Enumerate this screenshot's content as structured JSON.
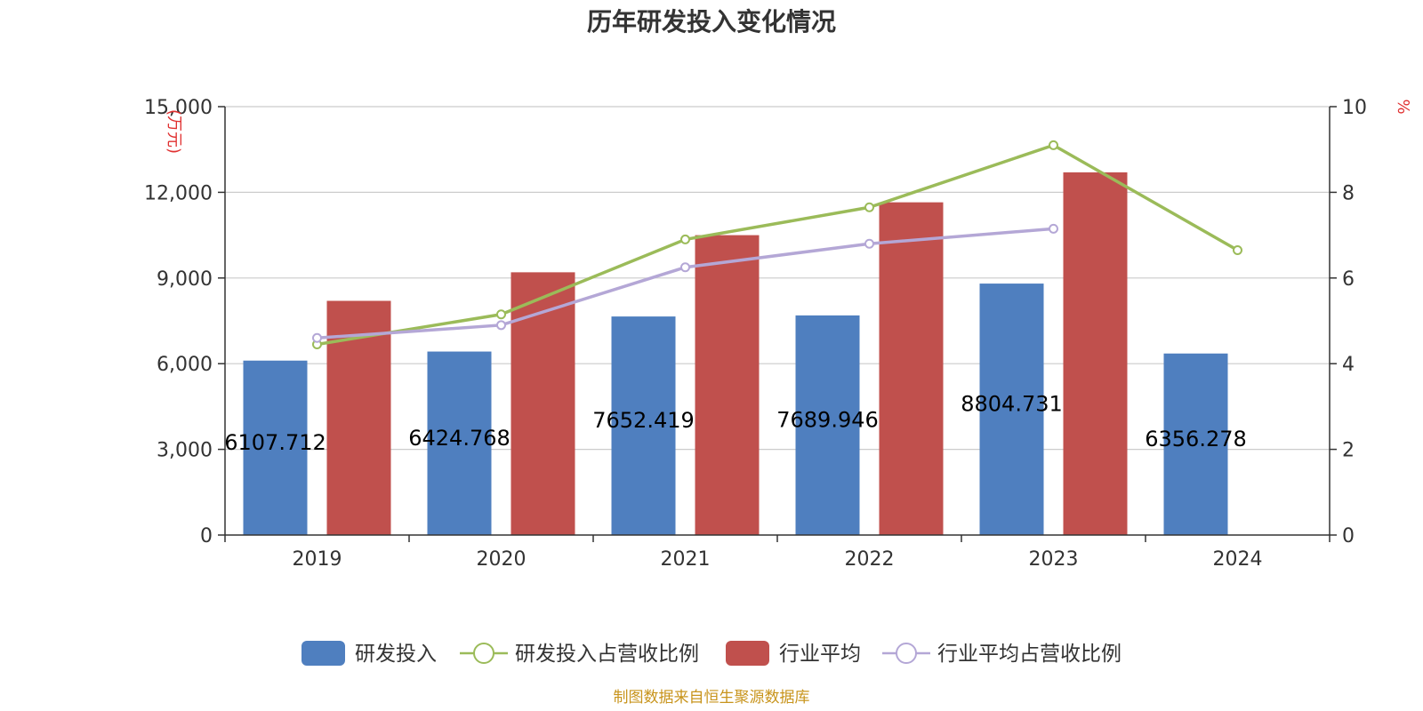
{
  "chart_data": {
    "type": "bar",
    "title": "历年研发投入变化情况",
    "categories": [
      "2019",
      "2020",
      "2021",
      "2022",
      "2023",
      "2024"
    ],
    "left_axis": {
      "unit": "(万元)",
      "ylim": [
        0,
        15000
      ],
      "ticks": [
        "0",
        "3,000",
        "6,000",
        "9,000",
        "12,000",
        "15,000"
      ]
    },
    "right_axis": {
      "unit": "%",
      "ylim": [
        0,
        10
      ],
      "ticks": [
        "0",
        "2",
        "4",
        "6",
        "8",
        "10"
      ]
    },
    "series": [
      {
        "name": "研发投入",
        "kind": "bar",
        "axis": "left",
        "color": "#4f7fbf",
        "values": [
          6107.712,
          6424.768,
          7652.419,
          7689.946,
          8804.731,
          6356.278
        ],
        "labels": [
          "6107.712",
          "6424.768",
          "7652.419",
          "7689.946",
          "8804.731",
          "6356.278"
        ]
      },
      {
        "name": "研发投入占营收比例",
        "kind": "line",
        "axis": "right",
        "color": "#9bbb59",
        "values": [
          4.45,
          5.15,
          6.9,
          7.65,
          9.1,
          6.65
        ]
      },
      {
        "name": "行业平均",
        "kind": "bar",
        "axis": "left",
        "color": "#c0504d",
        "values": [
          8200,
          9200,
          10500,
          11650,
          12700,
          null
        ]
      },
      {
        "name": "行业平均占营收比例",
        "kind": "line",
        "axis": "right",
        "color": "#b4a7d6",
        "values": [
          4.6,
          4.9,
          6.25,
          6.8,
          7.15,
          null
        ]
      }
    ],
    "grid": true,
    "legend": "bottom"
  },
  "source": "制图数据来自恒生聚源数据库"
}
